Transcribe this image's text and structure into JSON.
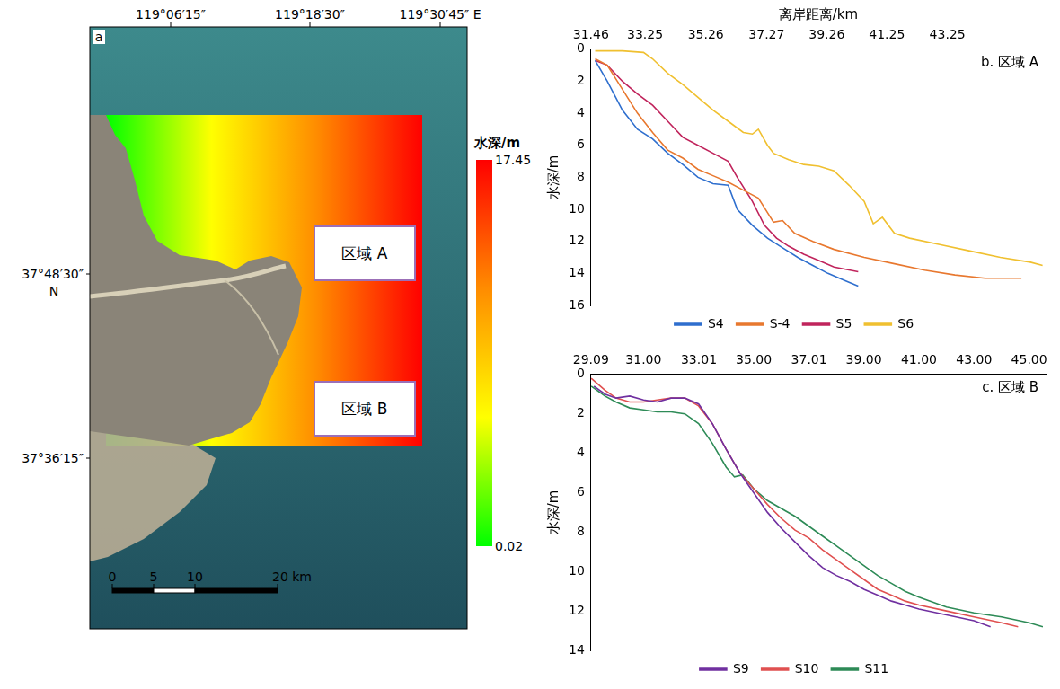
{
  "map": {
    "panel": "a",
    "lon_labels": [
      "119°06′15″",
      "119°18′30″",
      "119°30′45″ E"
    ],
    "lat_labels": [
      "37°48′30″",
      "37°36′15″"
    ],
    "lat_hemisphere": "N",
    "regions": [
      "区域 A",
      "区域 B"
    ],
    "colorbar": {
      "title": "水深/m",
      "range": [
        0.02,
        17.45
      ],
      "ticks": [
        0.02,
        17.45
      ],
      "colors": [
        "#00ff00",
        "#ffff00",
        "#ff8c00",
        "#ff0000"
      ]
    },
    "scale_bar": {
      "ticks": [
        0,
        5,
        10,
        {
          "value": 20,
          "label": "20 km"
        }
      ]
    }
  },
  "chart_data": [
    {
      "type": "line",
      "annotation": "b. 区域 A",
      "x_label": "离岸距离/km",
      "y_label": "水深/m",
      "xlim": [
        31.46,
        46.5
      ],
      "xticks": [
        31.46,
        33.25,
        35.26,
        37.27,
        39.26,
        41.25,
        43.25
      ],
      "ylim": [
        16,
        0
      ],
      "yticks": [
        0,
        2,
        4,
        6,
        8,
        10,
        12,
        14,
        16
      ],
      "grid": false,
      "legend": "bottom",
      "series": [
        {
          "name": "S4",
          "color": "#2f6fce",
          "x": [
            31.6,
            32.0,
            32.5,
            33.0,
            33.5,
            34.0,
            34.5,
            35.0,
            35.5,
            36.0,
            36.3,
            36.8,
            37.3,
            37.8,
            38.3,
            38.8,
            39.3,
            39.8,
            40.3
          ],
          "values": [
            0.7,
            2.0,
            3.8,
            5.0,
            5.6,
            6.5,
            7.2,
            8.0,
            8.4,
            8.5,
            10.0,
            11.0,
            11.8,
            12.4,
            13.0,
            13.5,
            14.0,
            14.4,
            14.8
          ]
        },
        {
          "name": "S-4",
          "color": "#e8782f",
          "x": [
            31.6,
            32.0,
            32.5,
            33.0,
            33.5,
            34.0,
            34.5,
            35.0,
            35.5,
            36.0,
            36.5,
            37.0,
            37.5,
            37.8,
            38.2,
            38.8,
            39.5,
            40.5,
            41.5,
            42.5,
            43.5,
            44.5,
            45.7
          ],
          "values": [
            0.6,
            1.0,
            2.5,
            4.0,
            5.2,
            6.3,
            6.8,
            7.5,
            7.9,
            8.3,
            8.8,
            9.3,
            10.8,
            10.7,
            11.5,
            12.0,
            12.5,
            13.0,
            13.4,
            13.8,
            14.1,
            14.3,
            14.3
          ]
        },
        {
          "name": "S5",
          "color": "#c0245c",
          "x": [
            31.6,
            32.0,
            32.5,
            33.0,
            33.5,
            34.0,
            34.5,
            35.0,
            35.5,
            36.0,
            36.3,
            36.8,
            37.2,
            37.6,
            38.0,
            38.5,
            39.0,
            39.5,
            40.3
          ],
          "values": [
            0.7,
            1.0,
            2.0,
            2.8,
            3.5,
            4.5,
            5.5,
            6.0,
            6.5,
            7.0,
            8.0,
            9.5,
            11.0,
            11.8,
            12.3,
            12.8,
            13.2,
            13.6,
            13.9
          ]
        },
        {
          "name": "S6",
          "color": "#f0c030",
          "x": [
            31.6,
            32.5,
            33.2,
            33.5,
            34.0,
            34.5,
            35.0,
            35.5,
            36.0,
            36.5,
            36.8,
            37.0,
            37.3,
            37.5,
            38.0,
            38.5,
            39.0,
            39.5,
            40.0,
            40.5,
            40.8,
            41.1,
            41.5,
            42.0,
            43.0,
            44.0,
            45.0,
            46.0,
            46.4
          ],
          "values": [
            0.1,
            0.1,
            0.2,
            0.6,
            1.5,
            2.2,
            3.0,
            3.8,
            4.5,
            5.2,
            5.3,
            5.0,
            6.0,
            6.5,
            6.9,
            7.2,
            7.3,
            7.6,
            8.5,
            9.5,
            10.9,
            10.5,
            11.5,
            11.8,
            12.2,
            12.6,
            13.0,
            13.3,
            13.5
          ]
        }
      ]
    },
    {
      "type": "line",
      "annotation": "c. 区域 B",
      "y_label": "水深/m",
      "xlim": [
        29.09,
        45.6
      ],
      "xticks": [
        29.09,
        {
          "value": 31.0,
          "label": "31.00"
        },
        33.01,
        {
          "value": 35.0,
          "label": "35.00"
        },
        37.01,
        {
          "value": 39.0,
          "label": "39.00"
        },
        {
          "value": 41.0,
          "label": "41.00"
        },
        {
          "value": 43.0,
          "label": "43.00"
        },
        {
          "value": 45.0,
          "label": "45.00"
        }
      ],
      "ylim": [
        14,
        0
      ],
      "yticks": [
        0,
        2,
        4,
        6,
        8,
        10,
        12,
        14
      ],
      "grid": false,
      "legend": "bottom",
      "series": [
        {
          "name": "S9",
          "color": "#7030a0",
          "x": [
            29.2,
            29.6,
            30.0,
            30.5,
            31.0,
            31.5,
            32.0,
            32.5,
            33.0,
            33.5,
            34.0,
            34.5,
            35.0,
            35.5,
            36.0,
            36.5,
            37.0,
            37.5,
            38.0,
            38.5,
            39.0,
            39.5,
            40.0,
            40.5,
            41.0,
            42.0,
            43.0,
            43.6
          ],
          "values": [
            0.6,
            1.0,
            1.2,
            1.1,
            1.3,
            1.4,
            1.2,
            1.2,
            1.5,
            2.5,
            3.8,
            5.0,
            6.0,
            7.0,
            7.8,
            8.5,
            9.2,
            9.8,
            10.2,
            10.5,
            10.9,
            11.2,
            11.5,
            11.7,
            11.9,
            12.2,
            12.5,
            12.8
          ]
        },
        {
          "name": "S10",
          "color": "#e05050",
          "x": [
            29.1,
            29.6,
            30.0,
            30.5,
            31.0,
            31.5,
            32.0,
            32.5,
            33.0,
            33.5,
            34.0,
            34.5,
            35.0,
            35.5,
            36.0,
            36.5,
            37.0,
            37.5,
            38.0,
            38.5,
            39.0,
            39.5,
            40.0,
            40.5,
            41.0,
            42.0,
            43.0,
            44.0,
            44.6
          ],
          "values": [
            0.2,
            0.8,
            1.2,
            1.4,
            1.4,
            1.3,
            1.2,
            1.2,
            1.6,
            2.5,
            3.8,
            5.0,
            5.8,
            6.6,
            7.3,
            7.9,
            8.3,
            8.9,
            9.4,
            9.9,
            10.4,
            10.9,
            11.2,
            11.5,
            11.7,
            12.0,
            12.3,
            12.6,
            12.8
          ]
        },
        {
          "name": "S11",
          "color": "#2e8b57",
          "x": [
            29.1,
            29.6,
            30.0,
            30.5,
            31.0,
            31.5,
            32.0,
            32.5,
            33.0,
            33.5,
            34.0,
            34.3,
            34.6,
            35.0,
            35.5,
            36.0,
            36.5,
            37.0,
            37.5,
            38.0,
            38.5,
            39.0,
            39.5,
            40.0,
            40.5,
            41.0,
            42.0,
            43.0,
            44.0,
            45.0,
            45.5
          ],
          "values": [
            0.6,
            1.1,
            1.4,
            1.7,
            1.8,
            1.9,
            1.9,
            2.0,
            2.5,
            3.5,
            4.7,
            5.2,
            5.1,
            5.8,
            6.4,
            6.8,
            7.2,
            7.7,
            8.2,
            8.7,
            9.2,
            9.7,
            10.2,
            10.6,
            11.0,
            11.3,
            11.8,
            12.1,
            12.3,
            12.6,
            12.8
          ]
        }
      ]
    }
  ]
}
